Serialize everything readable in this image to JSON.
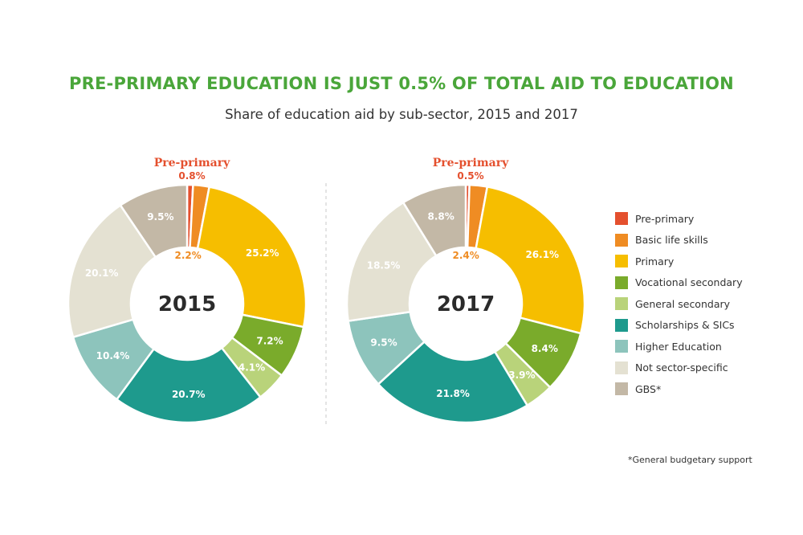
{
  "header": {
    "title": "PRE-PRIMARY EDUCATION IS JUST 0.5% OF TOTAL AID TO EDUCATION",
    "subtitle": "Share of education aid by sub-sector, 2015 and 2017"
  },
  "footnote": "*General budgetary support",
  "colors": {
    "pre_primary": "#e4502e",
    "basic_life_skills": "#ef8c23",
    "primary": "#f6be00",
    "vocational_secondary": "#7aab2b",
    "general_secondary": "#b9d37a",
    "scholarships": "#1e9a8d",
    "higher_education": "#8dc4bc",
    "not_sector_specific": "#e4e1d2",
    "gbs": "#c3b8a6",
    "title_green": "#4aa63a"
  },
  "legend": [
    {
      "label": "Pre-primary",
      "color": "#e4502e"
    },
    {
      "label": "Basic life skills",
      "color": "#ef8c23"
    },
    {
      "label": "Primary",
      "color": "#f6be00"
    },
    {
      "label": "Vocational secondary",
      "color": "#7aab2b"
    },
    {
      "label": "General secondary",
      "color": "#b9d37a"
    },
    {
      "label": "Scholarships & SICs",
      "color": "#1e9a8d"
    },
    {
      "label": "Higher Education",
      "color": "#8dc4bc"
    },
    {
      "label": "Not sector-specific",
      "color": "#e4e1d2"
    },
    {
      "label": "GBS*",
      "color": "#c3b8a6"
    }
  ],
  "chart_data": [
    {
      "type": "pie",
      "center_label": "2015",
      "callout_label": "Pre-primary",
      "slices": [
        {
          "category": "Pre-primary",
          "value": 0.8,
          "label": "0.8%"
        },
        {
          "category": "Basic life skills",
          "value": 2.2,
          "label": "2.2%"
        },
        {
          "category": "Primary",
          "value": 25.2,
          "label": "25.2%"
        },
        {
          "category": "Vocational secondary",
          "value": 7.2,
          "label": "7.2%"
        },
        {
          "category": "General secondary",
          "value": 4.1,
          "label": "4.1%"
        },
        {
          "category": "Scholarships & SICs",
          "value": 20.7,
          "label": "20.7%"
        },
        {
          "category": "Higher Education",
          "value": 10.4,
          "label": "10.4%"
        },
        {
          "category": "Not sector-specific",
          "value": 20.1,
          "label": "20.1%"
        },
        {
          "category": "GBS*",
          "value": 9.5,
          "label": "9.5%"
        }
      ]
    },
    {
      "type": "pie",
      "center_label": "2017",
      "callout_label": "Pre-primary",
      "slices": [
        {
          "category": "Pre-primary",
          "value": 0.5,
          "label": "0.5%"
        },
        {
          "category": "Basic life skills",
          "value": 2.4,
          "label": "2.4%"
        },
        {
          "category": "Primary",
          "value": 26.1,
          "label": "26.1%"
        },
        {
          "category": "Vocational secondary",
          "value": 8.4,
          "label": "8.4%"
        },
        {
          "category": "General secondary",
          "value": 3.9,
          "label": "3.9%"
        },
        {
          "category": "Scholarships & SICs",
          "value": 21.8,
          "label": "21.8%"
        },
        {
          "category": "Higher Education",
          "value": 9.5,
          "label": "9.5%"
        },
        {
          "category": "Not sector-specific",
          "value": 18.5,
          "label": "18.5%"
        },
        {
          "category": "GBS*",
          "value": 8.8,
          "label": "8.8%"
        }
      ]
    }
  ]
}
